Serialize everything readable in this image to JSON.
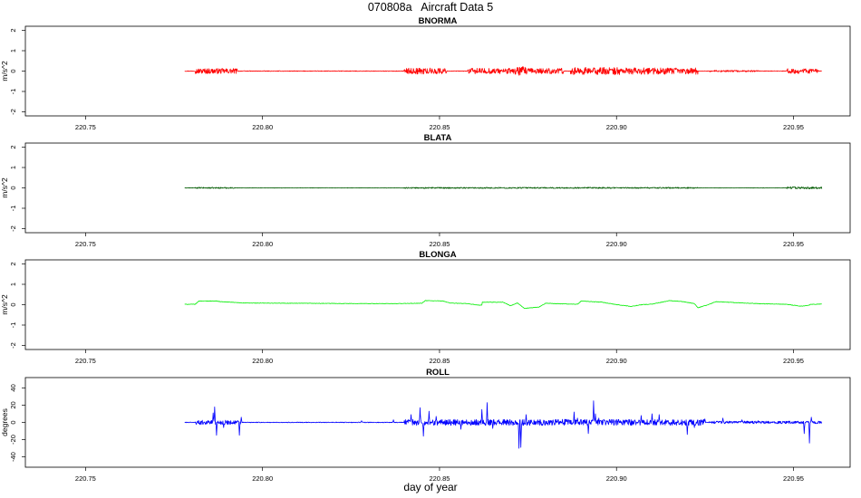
{
  "title": "070808a   Aircraft Data 5",
  "xlabel": "day of year",
  "chart_data": [
    {
      "type": "line",
      "title": "BNORMA",
      "ylabel": "m/s^2",
      "xlim": [
        220.733,
        220.966
      ],
      "ylim": [
        -2.2,
        2.2
      ],
      "xticks": [
        220.75,
        220.8,
        220.85,
        220.9,
        220.95
      ],
      "xtick_labels": [
        "220.75",
        "220.80",
        "220.85",
        "220.90",
        "220.95"
      ],
      "yticks": [
        -2,
        -1,
        0,
        1,
        2
      ],
      "ytick_labels": [
        "-2",
        "-1",
        "0",
        "1",
        "2"
      ],
      "color": "#ff0000",
      "series": [
        {
          "x_range": [
            220.778,
            220.958
          ],
          "baseline": 0,
          "segments": [
            {
              "x": [
                220.781,
                220.793
              ],
              "amp": 0.13
            },
            {
              "x": [
                220.84,
                220.852
              ],
              "amp": 0.15
            },
            {
              "x": [
                220.858,
                220.885
              ],
              "amp": 0.14
            },
            {
              "x": [
                220.871,
                220.875
              ],
              "amp": 0.22
            },
            {
              "x": [
                220.887,
                220.903
              ],
              "amp": 0.18
            },
            {
              "x": [
                220.902,
                220.923
              ],
              "amp": 0.16
            },
            {
              "x": [
                220.926,
                220.94
              ],
              "amp": 0.04
            },
            {
              "x": [
                220.948,
                220.957
              ],
              "amp": 0.12
            }
          ],
          "noise": 0.015
        }
      ]
    },
    {
      "type": "line",
      "title": "BLATA",
      "ylabel": "m/s^2",
      "xlim": [
        220.733,
        220.966
      ],
      "ylim": [
        -2.2,
        2.2
      ],
      "xticks": [
        220.75,
        220.8,
        220.85,
        220.9,
        220.95
      ],
      "xtick_labels": [
        "220.75",
        "220.80",
        "220.85",
        "220.90",
        "220.95"
      ],
      "yticks": [
        -2,
        -1,
        0,
        1,
        2
      ],
      "ytick_labels": [
        "-2",
        "-1",
        "0",
        "1",
        "2"
      ],
      "color": "#005a00",
      "series": [
        {
          "x_range": [
            220.778,
            220.958
          ],
          "baseline": 0,
          "segments": [
            {
              "x": [
                220.781,
                220.792
              ],
              "amp": 0.03
            },
            {
              "x": [
                220.84,
                220.923
              ],
              "amp": 0.03
            },
            {
              "x": [
                220.948,
                220.958
              ],
              "amp": 0.05
            }
          ],
          "noise": 0.01
        }
      ]
    },
    {
      "type": "line",
      "title": "BLONGA",
      "ylabel": "m/s^2",
      "xlim": [
        220.733,
        220.966
      ],
      "ylim": [
        -2.2,
        2.2
      ],
      "xticks": [
        220.75,
        220.8,
        220.85,
        220.9,
        220.95
      ],
      "xtick_labels": [
        "220.75",
        "220.80",
        "220.85",
        "220.90",
        "220.95"
      ],
      "yticks": [
        -2,
        -1,
        0,
        1,
        2
      ],
      "ytick_labels": [
        "-2",
        "-1",
        "0",
        "1",
        "2"
      ],
      "color": "#00ee00",
      "series": [
        {
          "x": [
            220.778,
            220.781,
            220.782,
            220.787,
            220.788,
            220.795,
            220.82,
            220.836,
            220.845,
            220.846,
            220.851,
            220.853,
            220.858,
            220.86,
            220.862,
            220.862,
            220.868,
            220.87,
            220.872,
            220.874,
            220.878,
            220.88,
            220.885,
            220.889,
            220.89,
            220.893,
            220.896,
            220.9,
            220.903,
            220.904,
            220.907,
            220.91,
            220.915,
            220.918,
            220.922,
            220.923,
            220.926,
            220.928,
            220.94,
            220.948,
            220.952,
            220.954,
            220.955,
            220.958
          ],
          "y": [
            0.02,
            0.02,
            0.18,
            0.18,
            0.15,
            0.08,
            0.06,
            0.05,
            0.07,
            0.2,
            0.18,
            0.08,
            0.05,
            0.0,
            -0.03,
            0.12,
            0.12,
            -0.05,
            0.08,
            -0.18,
            -0.12,
            0.07,
            0.04,
            0.02,
            0.18,
            0.15,
            0.12,
            0.0,
            -0.06,
            -0.09,
            0.0,
            0.03,
            0.2,
            0.17,
            0.05,
            -0.15,
            0.0,
            0.15,
            0.05,
            0.02,
            -0.07,
            -0.04,
            0.02,
            0.03
          ],
          "noise": 0.012
        }
      ]
    },
    {
      "type": "line",
      "title": "ROLL",
      "ylabel": "degrees",
      "xlim": [
        220.733,
        220.966
      ],
      "ylim": [
        -52,
        52
      ],
      "xticks": [
        220.75,
        220.8,
        220.85,
        220.9,
        220.95
      ],
      "xtick_labels": [
        "220.75",
        "220.80",
        "220.85",
        "220.90",
        "220.95"
      ],
      "yticks": [
        -40,
        -20,
        0,
        20,
        40
      ],
      "ytick_labels": [
        "-40",
        "-20",
        "0",
        "20",
        "40"
      ],
      "color": "#0000ff",
      "series": [
        {
          "x_range": [
            220.778,
            220.958
          ],
          "baseline": 0,
          "segments": [
            {
              "x": [
                220.781,
                220.794
              ],
              "amp": 2.5
            },
            {
              "x": [
                220.84,
                220.925
              ],
              "amp": 3.5
            },
            {
              "x": [
                220.926,
                220.958
              ],
              "amp": 1.5
            }
          ],
          "spikes": [
            {
              "x": 220.7865,
              "y": 18
            },
            {
              "x": 220.787,
              "y": -15
            },
            {
              "x": 220.786,
              "y": 11
            },
            {
              "x": 220.789,
              "y": -6
            },
            {
              "x": 220.7935,
              "y": -15
            },
            {
              "x": 220.794,
              "y": 6
            },
            {
              "x": 220.828,
              "y": 2
            },
            {
              "x": 220.837,
              "y": 3
            },
            {
              "x": 220.842,
              "y": 9
            },
            {
              "x": 220.8445,
              "y": 17
            },
            {
              "x": 220.8455,
              "y": -16
            },
            {
              "x": 220.847,
              "y": 13
            },
            {
              "x": 220.849,
              "y": 7
            },
            {
              "x": 220.856,
              "y": -8
            },
            {
              "x": 220.862,
              "y": 15
            },
            {
              "x": 220.8635,
              "y": 23
            },
            {
              "x": 220.865,
              "y": -7
            },
            {
              "x": 220.8725,
              "y": -30
            },
            {
              "x": 220.873,
              "y": -29
            },
            {
              "x": 220.8745,
              "y": 9
            },
            {
              "x": 220.889,
              "y": 5
            },
            {
              "x": 220.8935,
              "y": 25
            },
            {
              "x": 220.894,
              "y": 10
            },
            {
              "x": 220.895,
              "y": 5
            },
            {
              "x": 220.892,
              "y": -13
            },
            {
              "x": 220.888,
              "y": 12
            },
            {
              "x": 220.907,
              "y": 8
            },
            {
              "x": 220.91,
              "y": 10
            },
            {
              "x": 220.912,
              "y": 9
            },
            {
              "x": 220.92,
              "y": -14
            },
            {
              "x": 220.922,
              "y": -6
            },
            {
              "x": 220.925,
              "y": 4
            },
            {
              "x": 220.93,
              "y": 5
            },
            {
              "x": 220.9355,
              "y": 3
            },
            {
              "x": 220.94,
              "y": 2
            },
            {
              "x": 220.953,
              "y": -13
            },
            {
              "x": 220.9545,
              "y": -24
            },
            {
              "x": 220.955,
              "y": 6
            }
          ],
          "noise": 0.4
        }
      ]
    }
  ]
}
